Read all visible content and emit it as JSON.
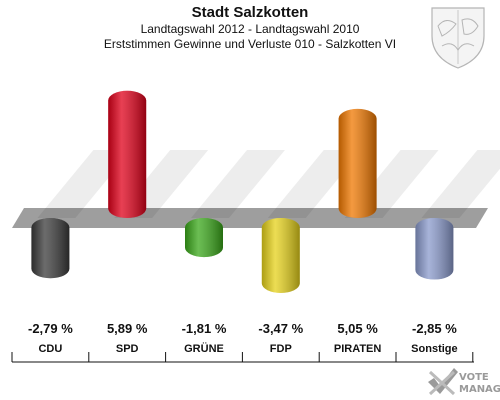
{
  "header": {
    "title": "Stadt Salzkotten",
    "subtitle": "Landtagswahl 2012 - Landtagswahl 2010",
    "subsubtitle": "Erststimmen Gewinne und Verluste 010 - Salzkotten VI"
  },
  "logo": {
    "line1": "VOTE",
    "line2": "MANAGER"
  },
  "chart_data": {
    "type": "bar",
    "title": "Stadt Salzkotten",
    "categories": [
      "CDU",
      "SPD",
      "GRÜNE",
      "FDP",
      "PIRATEN",
      "Sonstige"
    ],
    "values": [
      -2.79,
      5.89,
      -1.81,
      -3.47,
      5.05,
      -2.85
    ],
    "value_labels": [
      "-2,79 %",
      "5,89 %",
      "-1,81 %",
      "-3,47 %",
      "5,05 %",
      "-2,85 %"
    ],
    "colors": [
      "#3a3a3a",
      "#e0001a",
      "#3aa81a",
      "#e6d21a",
      "#f07800",
      "#8a9acc"
    ],
    "ylim": [
      -4,
      7
    ],
    "grid": false,
    "legend": "none"
  }
}
